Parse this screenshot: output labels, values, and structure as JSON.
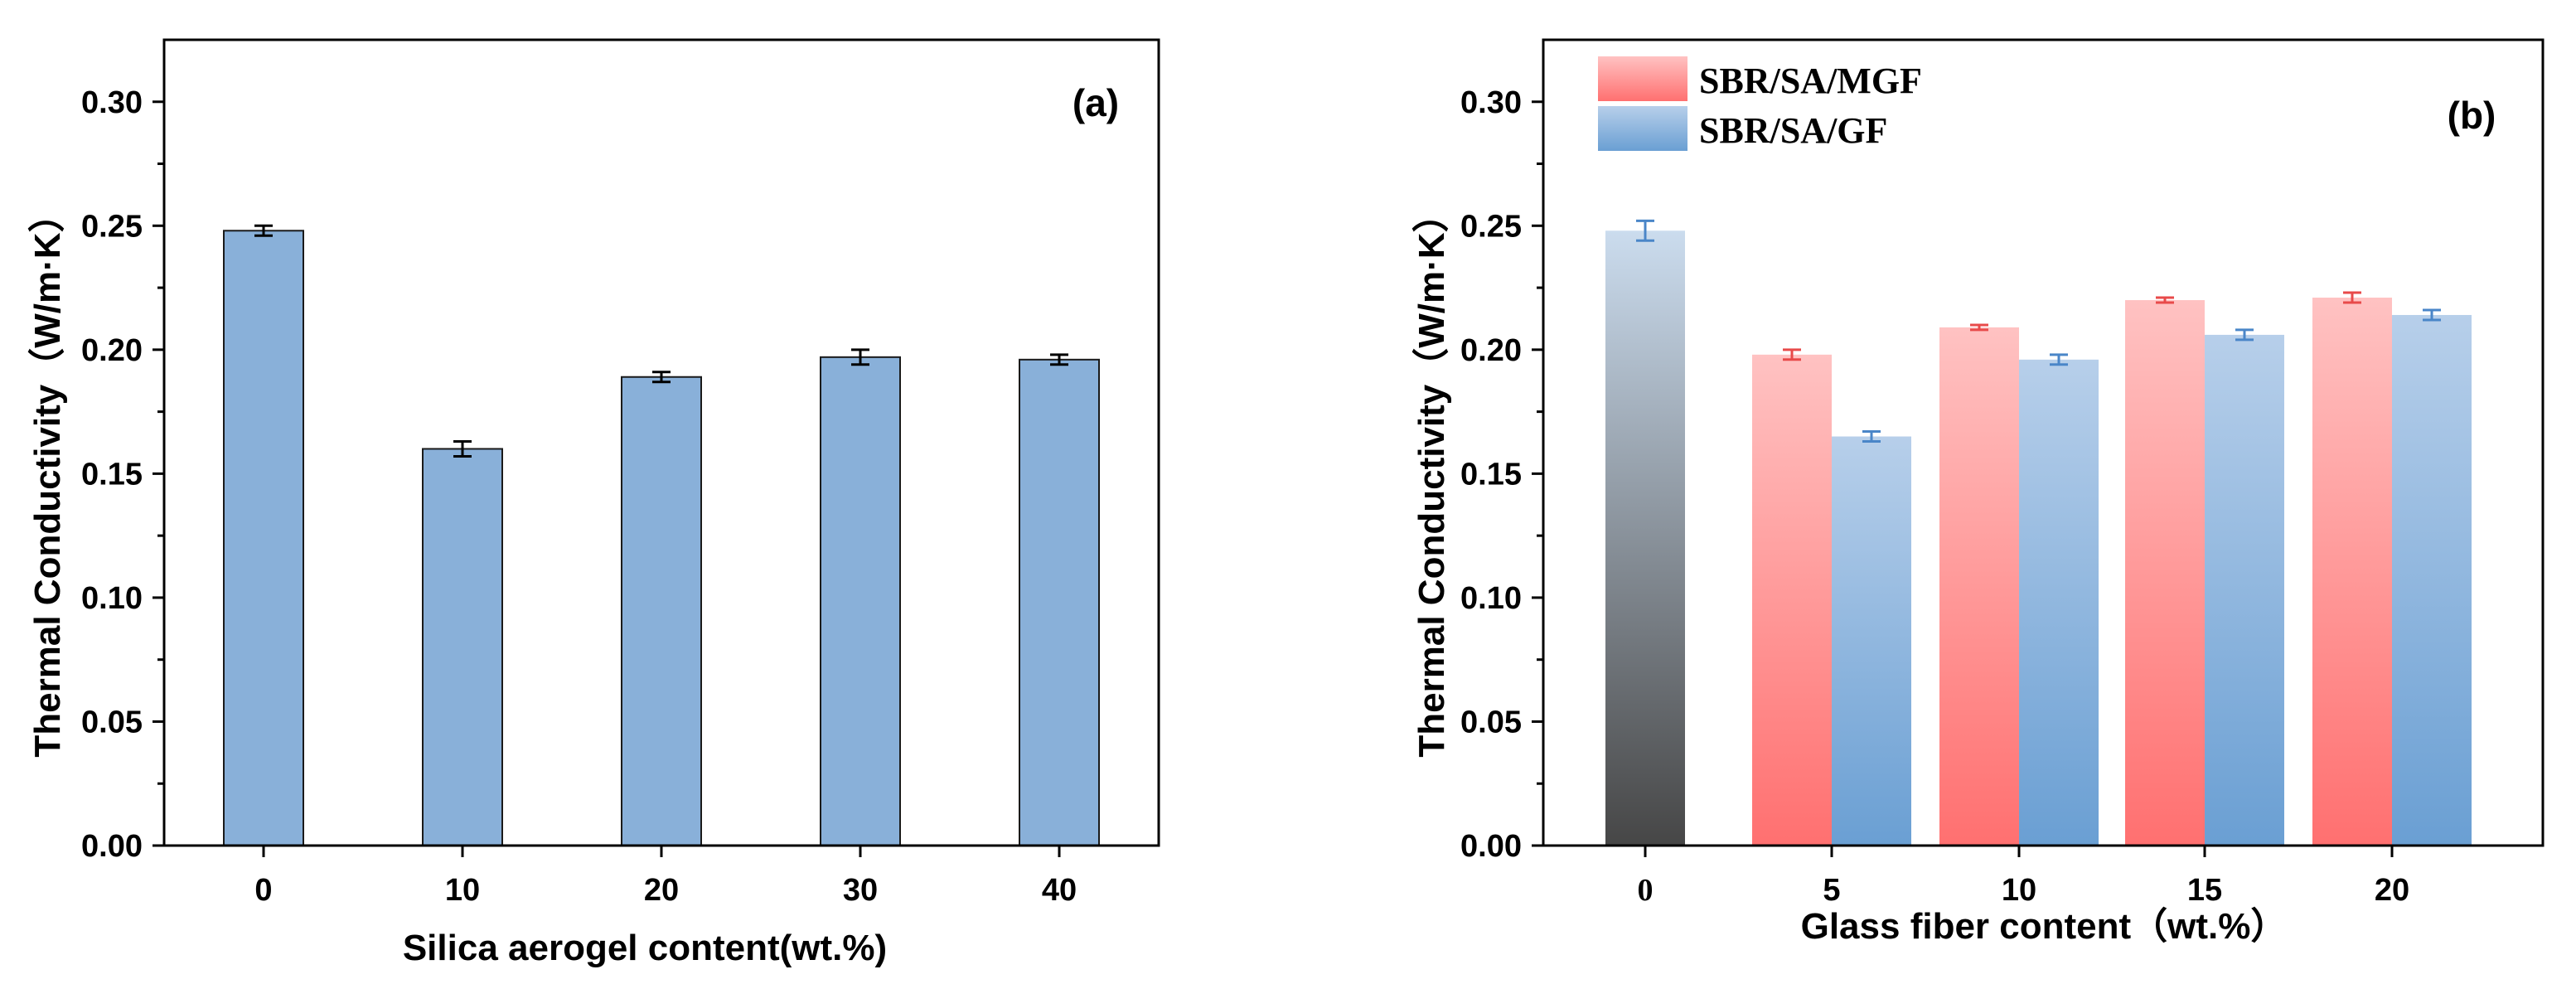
{
  "chart_data": [
    {
      "type": "bar",
      "panel_label": "(a)",
      "categories": [
        "0",
        "10",
        "20",
        "30",
        "40"
      ],
      "series": [
        {
          "name": "",
          "values": [
            0.248,
            0.16,
            0.189,
            0.197,
            0.196
          ],
          "errors": [
            0.002,
            0.003,
            0.002,
            0.003,
            0.002
          ],
          "color": "#89b0d9"
        }
      ],
      "title": "",
      "xlabel": "Silica aerogel content(wt.%)",
      "ylabel": "Thermal Conductivity（W/m·K）",
      "ylim": [
        0,
        0.325
      ],
      "yticks": [
        "0.00",
        "0.05",
        "0.10",
        "0.15",
        "0.20",
        "0.25",
        "0.30"
      ],
      "legend": "none"
    },
    {
      "type": "bar",
      "panel_label": "(b)",
      "categories": [
        "0",
        "5",
        "10",
        "15",
        "20"
      ],
      "control": {
        "category": "0",
        "value": 0.248,
        "error": 0.004,
        "color_top": "#cbdcee",
        "color_bottom": "#464646"
      },
      "series": [
        {
          "name": "SBR/SA/MGF",
          "values": [
            null,
            0.198,
            0.209,
            0.22,
            0.221
          ],
          "errors": [
            null,
            0.002,
            0.001,
            0.001,
            0.002
          ],
          "color_top": "#ffc2c2",
          "color_bottom": "#ff7070"
        },
        {
          "name": "SBR/SA/GF",
          "values": [
            null,
            0.165,
            0.196,
            0.206,
            0.214
          ],
          "errors": [
            null,
            0.002,
            0.002,
            0.002,
            0.002
          ],
          "color_top": "#b7cfea",
          "color_bottom": "#6a9fd3"
        }
      ],
      "title": "",
      "xlabel": "Glass fiber content（wt.%）",
      "ylabel": "Thermal Conductivity（W/m·K）",
      "ylim": [
        0,
        0.325
      ],
      "yticks": [
        "0.00",
        "0.05",
        "0.10",
        "0.15",
        "0.20",
        "0.25",
        "0.30"
      ],
      "legend": "top-left"
    }
  ]
}
